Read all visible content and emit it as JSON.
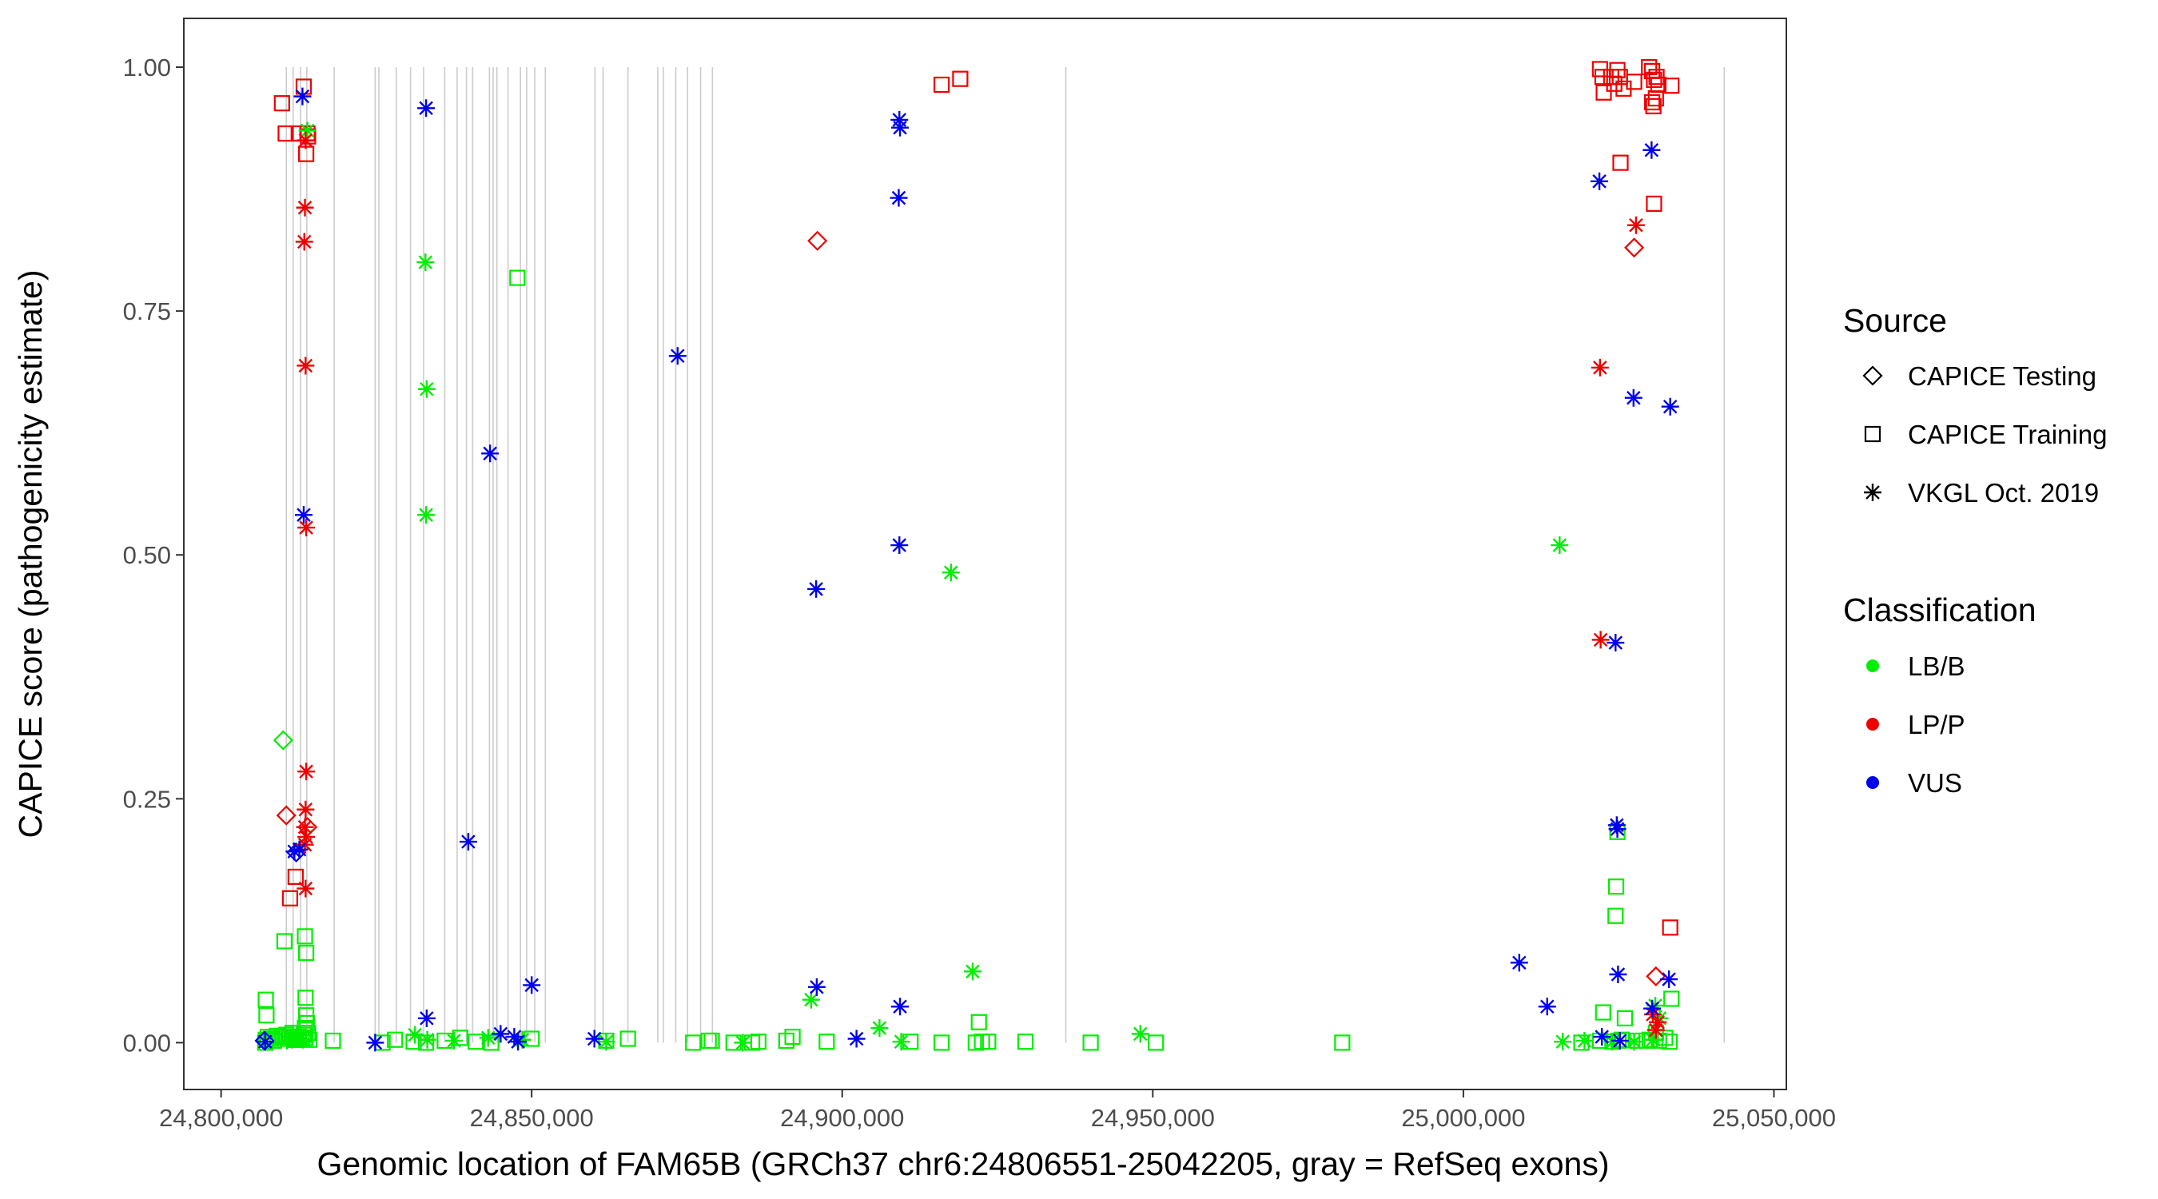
{
  "chart_data": {
    "type": "scatter",
    "title": "",
    "xlabel": "Genomic location of FAM65B (GRCh37 chr6:24806551-25042205, gray = RefSeq exons)",
    "ylabel": "CAPICE score (pathogenicity estimate)",
    "xlim": [
      24794000,
      25052000
    ],
    "ylim": [
      -0.048,
      1.05
    ],
    "x_ticks": [
      24800000,
      24850000,
      24900000,
      24950000,
      25000000,
      25050000
    ],
    "x_tick_labels": [
      "24,800,000",
      "24,850,000",
      "24,900,000",
      "24,950,000",
      "25,000,000",
      "25,050,000"
    ],
    "y_ticks": [
      0,
      0.25,
      0.5,
      0.75,
      1.0
    ],
    "y_tick_labels": [
      "0.00",
      "0.25",
      "0.50",
      "0.75",
      "1.00"
    ],
    "grid": false,
    "exons": [
      24810500,
      24811600,
      24812800,
      24813800,
      24818200,
      24824800,
      24825400,
      24828200,
      24830500,
      24832600,
      24836000,
      24838000,
      24839500,
      24840500,
      24843200,
      24843800,
      24844400,
      24846200,
      24848200,
      24849200,
      24850500,
      24852200,
      24860200,
      24861500,
      24865500,
      24870300,
      24871200,
      24873200,
      24875100,
      24877200,
      24879100,
      24936000,
      25042000
    ],
    "legend": {
      "source_title": "Source",
      "source_items": [
        {
          "label": "CAPICE Testing",
          "shape": "diamond"
        },
        {
          "label": "CAPICE Training",
          "shape": "square"
        },
        {
          "label": "VKGL Oct. 2019",
          "shape": "asterisk"
        }
      ],
      "class_title": "Classification",
      "class_items": [
        {
          "label": "LB/B",
          "color": "#00ee00"
        },
        {
          "label": "LP/P",
          "color": "#ee0000"
        },
        {
          "label": "VUS",
          "color": "#0000ee"
        }
      ]
    },
    "colors": {
      "LB/B": "#00ee00",
      "LP/P": "#ee0000",
      "VUS": "#0000ee"
    },
    "series": [
      {
        "name": "CAPICE Training - LB/B",
        "shape": "square",
        "class": "LB/B",
        "x": [
          24807100,
          24807200,
          24807500,
          24808000,
          24808500,
          24809000,
          24809500,
          24810000,
          24810500,
          24811000,
          24811500,
          24812000,
          24812500,
          24813000,
          24813300,
          24813600,
          24814000,
          24814200,
          24807200,
          24807300,
          24810200,
          24813500,
          24813700,
          24813600,
          24813700,
          24813500,
          24813800,
          24812100,
          24818000,
          24826000,
          24828000,
          24831000,
          24833000,
          24836000,
          24838500,
          24841000,
          24843500,
          24847700,
          24850000,
          24862000,
          24865500,
          24876000,
          24878500,
          24879000,
          24882500,
          24885500,
          24886500,
          24891000,
          24892000,
          24897500,
          24911000,
          24916000,
          24921500,
          24922500,
          24923500,
          24922000,
          24929500,
          24940000,
          24950500,
          24980500,
          25019000,
          25022000,
          25022500,
          25024000,
          25025000,
          25025500,
          25026000,
          25028000,
          25029500,
          25030000,
          25031500,
          25032500,
          25033500,
          25033200,
          25024800,
          25024600,
          25031000,
          25024500
        ],
        "y": [
          0,
          0.003,
          0.006,
          0.004,
          0.002,
          0.007,
          0.004,
          0.006,
          0.008,
          0.005,
          0.01,
          0.003,
          0.006,
          0.004,
          0.008,
          0.005,
          0.01,
          0.003,
          0.044,
          0.028,
          0.104,
          0.109,
          0.092,
          0.046,
          0.028,
          0.015,
          0.02,
          0.003,
          0.002,
          0,
          0.003,
          0.001,
          0,
          0.002,
          0.005,
          0.001,
          0,
          0.784,
          0.004,
          0.002,
          0.004,
          0,
          0.002,
          0.002,
          0,
          0,
          0.001,
          0.002,
          0.006,
          0.001,
          0.001,
          0,
          0,
          0.001,
          0.001,
          0.021,
          0.001,
          0,
          0,
          0,
          0,
          0.002,
          0.031,
          0.001,
          0.002,
          0.003,
          0.025,
          0.002,
          0.002,
          0.003,
          0.002,
          0.005,
          0.045,
          0.001,
          0.216,
          0.16,
          0.01,
          0.13
        ]
      },
      {
        "name": "CAPICE Training - LP/P",
        "shape": "square",
        "class": "LP/P",
        "x": [
          24809800,
          24810400,
          24812500,
          24813300,
          24813700,
          24813900,
          24814000,
          24811100,
          24812000,
          24916000,
          24919000,
          25022000,
          25022400,
          25022600,
          25023800,
          25024300,
          25024800,
          25025200,
          25025800,
          25027500,
          25029900,
          25030400,
          25030700,
          25031100,
          25031400,
          25031000,
          25030600,
          25030400,
          25025300,
          25030700,
          25033500,
          25033300
        ],
        "y": [
          0.963,
          0.932,
          0.932,
          0.98,
          0.911,
          0.932,
          0.929,
          0.148,
          0.17,
          0.982,
          0.988,
          0.998,
          0.99,
          0.974,
          0.99,
          0.983,
          0.997,
          0.99,
          0.978,
          0.985,
          1.0,
          0.996,
          0.987,
          0.99,
          0.982,
          0.968,
          0.96,
          0.964,
          0.902,
          0.86,
          0.981,
          0.118
        ]
      },
      {
        "name": "CAPICE Testing - LB/B",
        "shape": "diamond",
        "class": "LB/B",
        "x": [
          24810000
        ],
        "y": [
          0.31
        ]
      },
      {
        "name": "CAPICE Testing - LP/P",
        "shape": "diamond",
        "class": "LP/P",
        "x": [
          24810500,
          24813900,
          24896000,
          25027500,
          25031000
        ],
        "y": [
          0.233,
          0.221,
          0.822,
          0.815,
          0.068
        ]
      },
      {
        "name": "CAPICE Testing - VUS",
        "shape": "diamond",
        "class": "VUS",
        "x": [
          24807000,
          24812100
        ],
        "y": [
          0.002,
          0.195
        ]
      },
      {
        "name": "VKGL - LB/B",
        "shape": "asterisk",
        "class": "LB/B",
        "x": [
          24810600,
          24811400,
          24812600,
          24813200,
          24813900,
          24831200,
          24832900,
          24833100,
          24833000,
          24833200,
          24837500,
          24843000,
          24848500,
          24862000,
          24884000,
          24895000,
          24906000,
          24909500,
          24917500,
          24921000,
          24948000,
          25015500,
          25016000,
          25019500,
          25024000,
          25027500,
          25030500,
          25031600,
          25030900
        ],
        "y": [
          0.002,
          0.003,
          0.004,
          0.003,
          0.935,
          0.008,
          0.8,
          0.67,
          0.541,
          0.003,
          0.002,
          0.005,
          0.003,
          0.001,
          0,
          0.044,
          0.015,
          0.001,
          0.482,
          0.073,
          0.009,
          0.51,
          0.001,
          0.002,
          0.001,
          0.001,
          0.003,
          0.025,
          0.038
        ]
      },
      {
        "name": "VKGL - LP/P",
        "shape": "asterisk",
        "class": "LP/P",
        "x": [
          24813600,
          24813500,
          24813400,
          24813600,
          24813700,
          24813700,
          24813600,
          24813500,
          24813700,
          24813500,
          24813600,
          25022000,
          25022100,
          25027800,
          25030500,
          25031000,
          25031300
        ],
        "y": [
          0.925,
          0.856,
          0.821,
          0.694,
          0.528,
          0.278,
          0.239,
          0.221,
          0.211,
          0.203,
          0.158,
          0.692,
          0.413,
          0.838,
          0.029,
          0.013,
          0.021
        ]
      },
      {
        "name": "VKGL - VUS",
        "shape": "asterisk",
        "class": "VUS",
        "x": [
          24807100,
          24813100,
          24813300,
          24811800,
          24812600,
          24824800,
          24833000,
          24833100,
          24839800,
          24843300,
          24845000,
          24847200,
          24847800,
          24850000,
          24860100,
          24873500,
          24895800,
          24895900,
          24902300,
          24909200,
          24909300,
          24909100,
          24909200,
          24909300,
          25009000,
          25013500,
          25021900,
          25022300,
          25024500,
          25024700,
          25024800,
          25024900,
          25025200,
          25027400,
          25030300,
          25030400,
          25033300,
          25033100
        ],
        "y": [
          0.001,
          0.97,
          0.541,
          0.196,
          0.198,
          0,
          0.958,
          0.025,
          0.206,
          0.604,
          0.009,
          0.006,
          0.001,
          0.059,
          0.004,
          0.704,
          0.465,
          0.057,
          0.004,
          0.946,
          0.938,
          0.866,
          0.51,
          0.037,
          0.082,
          0.037,
          0.883,
          0.006,
          0.41,
          0.223,
          0.219,
          0.07,
          0.002,
          0.661,
          0.915,
          0.035,
          0.652,
          0.065
        ]
      }
    ]
  }
}
